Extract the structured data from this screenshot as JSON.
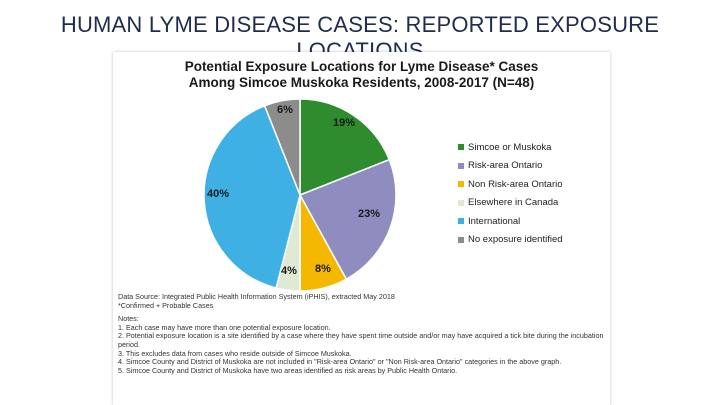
{
  "slide": {
    "title": "HUMAN LYME DISEASE CASES: REPORTED EXPOSURE LOCATIONS"
  },
  "chart_data": {
    "type": "pie",
    "title": "Potential Exposure Locations for Lyme Disease* Cases",
    "subtitle": "Among Simcoe Muskoka Residents, 2008-2017 (N=48)",
    "slices": [
      {
        "label": "Simcoe or Muskoka",
        "value": 19,
        "display": "19%",
        "color": "#2e8b2e"
      },
      {
        "label": "Risk-area Ontario",
        "value": 23,
        "display": "23%",
        "color": "#8f8cc0"
      },
      {
        "label": "Non Risk-area Ontario",
        "value": 8,
        "display": "8%",
        "color": "#f5b800"
      },
      {
        "label": "Elsewhere in Canada",
        "value": 4,
        "display": "4%",
        "color": "#dfe9d4"
      },
      {
        "label": "International",
        "value": 40,
        "display": "40%",
        "color": "#3fb0e4"
      },
      {
        "label": "No exposure identified",
        "value": 6,
        "display": "6%",
        "color": "#8c8c8c"
      }
    ],
    "legend_position": "right"
  },
  "notes": {
    "source": "Data Source: Integrated Public Health Information System (iPHIS), extracted May 2018",
    "footnote": "*Confirmed + Probable Cases",
    "heading": "Notes:",
    "items": [
      "1. Each case may have more than one potential exposure location.",
      "2. Potential exposure location is a site identified by a case where they have spent time outside and/or may have acquired a tick bite during the incubation period.",
      "3. This excludes data from cases who reside outside of Simcoe Muskoka.",
      "4. Simcoe County and District of Muskoka are not included in \"Risk-area Ontario\" or \"Non Risk-area Ontario\" categories in the above graph.",
      "5. Simcoe County and District of Muskoka have two areas identified as risk areas by Public Health Ontario."
    ]
  }
}
